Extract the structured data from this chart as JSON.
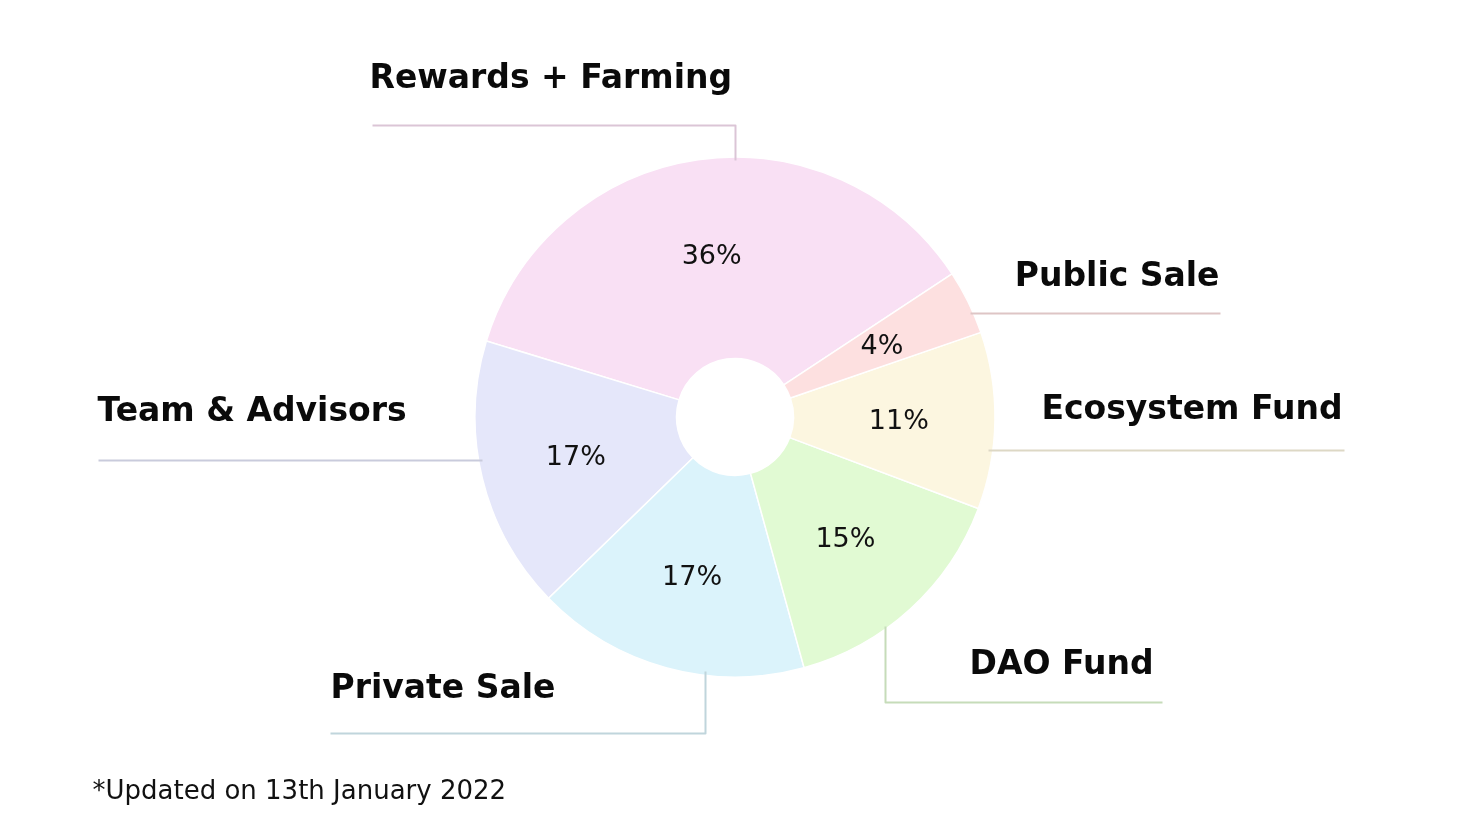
{
  "chart_data": {
    "type": "donut",
    "categories": [
      "Rewards + Farming",
      "Team & Advisors",
      "Private Sale",
      "DAO Fund",
      "Ecosystem Fund",
      "Public Sale"
    ],
    "values": [
      36,
      17,
      17,
      15,
      11,
      4
    ],
    "value_labels": [
      "36%",
      "17%",
      "17%",
      "15%",
      "11%",
      "4%"
    ],
    "colors": [
      "#f9e0f4",
      "#e5e7fa",
      "#dbf3fb",
      "#e1fad3",
      "#fcf6e0",
      "#fde0e0"
    ],
    "annotations": [
      "*Updated on 13th January 2022"
    ]
  }
}
